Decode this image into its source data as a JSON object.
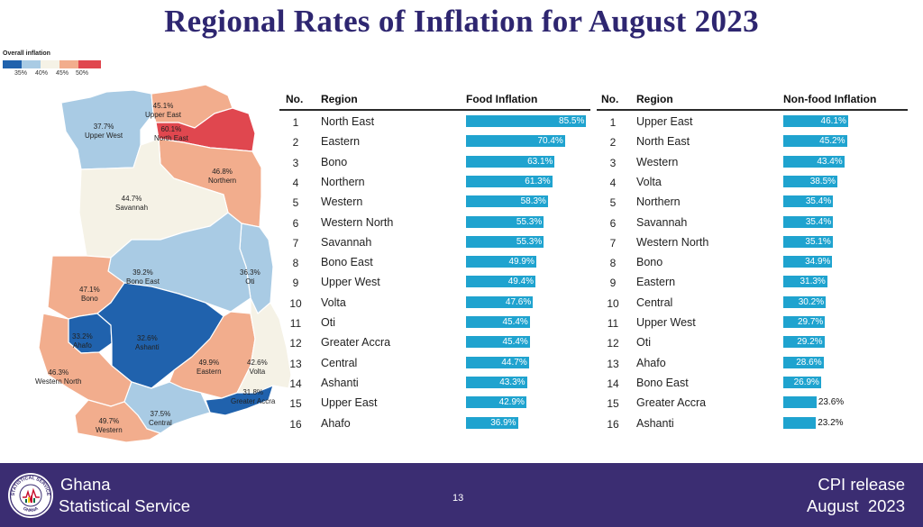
{
  "title": "Regional Rates of Inflation for August 2023",
  "legend": {
    "title": "Overall inflation",
    "swatches": [
      "#2062ad",
      "#a9cbe4",
      "#f5f2e6",
      "#f2ad8d",
      "#e0474f"
    ],
    "ticks": [
      "35%",
      "40%",
      "45%",
      "50%"
    ]
  },
  "map_regions": [
    {
      "name": "Upper West",
      "value": "37.7%",
      "color": "#a9cbe4"
    },
    {
      "name": "Upper East",
      "value": "45.1%",
      "color": "#f2ad8d"
    },
    {
      "name": "North East",
      "value": "60.1%",
      "color": "#e0474f"
    },
    {
      "name": "Northern",
      "value": "46.8%",
      "color": "#f2ad8d"
    },
    {
      "name": "Savannah",
      "value": "44.7%",
      "color": "#f5f2e6"
    },
    {
      "name": "Bono East",
      "value": "39.2%",
      "color": "#a9cbe4"
    },
    {
      "name": "Oti",
      "value": "36.3%",
      "color": "#a9cbe4"
    },
    {
      "name": "Bono",
      "value": "47.1%",
      "color": "#f2ad8d"
    },
    {
      "name": "Ahafo",
      "value": "33.2%",
      "color": "#2062ad"
    },
    {
      "name": "Ashanti",
      "value": "32.6%",
      "color": "#2062ad"
    },
    {
      "name": "Eastern",
      "value": "49.9%",
      "color": "#f2ad8d"
    },
    {
      "name": "Volta",
      "value": "42.6%",
      "color": "#f5f2e6"
    },
    {
      "name": "Western North",
      "value": "46.3%",
      "color": "#f2ad8d"
    },
    {
      "name": "Greater Accra",
      "value": "31.8%",
      "color": "#2062ad"
    },
    {
      "name": "Central",
      "value": "37.5%",
      "color": "#a9cbe4"
    },
    {
      "name": "Western",
      "value": "49.7%",
      "color": "#f2ad8d"
    }
  ],
  "chart_data": [
    {
      "type": "bar",
      "orientation": "horizontal",
      "title": "Food Inflation",
      "columns": [
        "No.",
        "Region",
        "Food Inflation"
      ],
      "numbers": [
        "1",
        "2",
        "3",
        "4",
        "5",
        "6",
        "7",
        "8",
        "9",
        "10",
        "11",
        "12",
        "13",
        "14",
        "15",
        "16"
      ],
      "categories": [
        "North East",
        "Eastern",
        "Bono",
        "Northern",
        "Western",
        "Western North",
        "Savannah",
        "Bono East",
        "Upper West",
        "Volta",
        "Oti",
        "Greater Accra",
        "Central",
        "Ashanti",
        "Upper East",
        "Ahafo"
      ],
      "values": [
        85.5,
        70.4,
        63.1,
        61.3,
        58.3,
        55.3,
        55.3,
        49.9,
        49.4,
        47.6,
        45.4,
        45.4,
        44.7,
        43.3,
        42.9,
        36.9
      ],
      "labels": [
        "85.5%",
        "70.4%",
        "63.1%",
        "61.3%",
        "58.3%",
        "55.3%",
        "55.3%",
        "49.9%",
        "49.4%",
        "47.6%",
        "45.4%",
        "45.4%",
        "44.7%",
        "43.3%",
        "42.9%",
        "36.9%"
      ],
      "color": "#1fa3cf"
    },
    {
      "type": "bar",
      "orientation": "horizontal",
      "title": "Non-food Inflation",
      "columns": [
        "No.",
        "Region",
        "Non-food Inflation"
      ],
      "numbers": [
        "1",
        "2",
        "3",
        "4",
        "5",
        "6",
        "7",
        "8",
        "9",
        "10",
        "11",
        "12",
        "13",
        "14",
        "15",
        "16"
      ],
      "categories": [
        "Upper East",
        "North East",
        "Western",
        "Volta",
        "Northern",
        "Savannah",
        "Western North",
        "Bono",
        "Eastern",
        "Central",
        "Upper West",
        "Oti",
        "Ahafo",
        "Bono East",
        "Greater Accra",
        "Ashanti"
      ],
      "values": [
        46.1,
        45.2,
        43.4,
        38.5,
        35.4,
        35.4,
        35.1,
        34.9,
        31.3,
        30.2,
        29.7,
        29.2,
        28.6,
        26.9,
        23.6,
        23.2
      ],
      "labels": [
        "46.1%",
        "45.2%",
        "43.4%",
        "38.5%",
        "35.4%",
        "35.4%",
        "35.1%",
        "34.9%",
        "31.3%",
        "30.2%",
        "29.7%",
        "29.2%",
        "28.6%",
        "26.9%",
        "23.6%",
        "23.2%"
      ],
      "color": "#1fa3cf"
    }
  ],
  "footer": {
    "org_line1": "Ghana",
    "org_line2": "Statistical Service",
    "page_number": "13",
    "release_line1": "CPI release",
    "release_line2": "August  2023",
    "logo_text_top": "STATISTICAL SERVICE",
    "logo_text_bottom": "GHANA"
  }
}
